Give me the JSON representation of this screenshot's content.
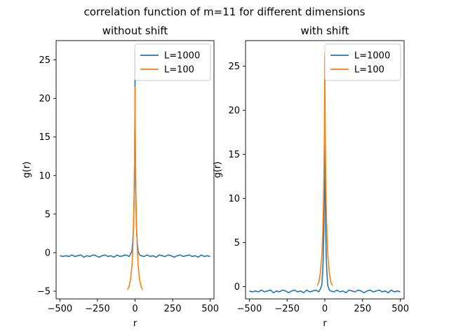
{
  "chart_data": {
    "suptitle": "correlation function of m=11 for different dimensions",
    "subplots": [
      {
        "type": "line",
        "title": "without shift",
        "xlabel": "r",
        "ylabel": "g(r)",
        "xlim": [
          -525,
          525
        ],
        "ylim": [
          -6,
          27.5
        ],
        "xticks": [
          -500,
          -250,
          0,
          250,
          500
        ],
        "yticks": [
          -5,
          0,
          5,
          10,
          15,
          20,
          25
        ],
        "legend": "top-right",
        "series": [
          {
            "name": "L=1000",
            "color": "#1f77b4",
            "x": [
              -500,
              -480,
              -460,
              -440,
              -420,
              -400,
              -380,
              -360,
              -340,
              -320,
              -300,
              -280,
              -260,
              -240,
              -220,
              -200,
              -180,
              -160,
              -140,
              -120,
              -100,
              -80,
              -60,
              -40,
              -30,
              -20,
              -15,
              -10,
              -6,
              -3,
              -1,
              0,
              0,
              1,
              3,
              6,
              10,
              15,
              20,
              30,
              40,
              60,
              80,
              100,
              120,
              140,
              160,
              180,
              200,
              220,
              240,
              260,
              280,
              300,
              320,
              340,
              360,
              380,
              400,
              420,
              440,
              460,
              480,
              500
            ],
            "y": [
              -0.4,
              -0.5,
              -0.4,
              -0.5,
              -0.3,
              -0.5,
              -0.4,
              -0.3,
              -0.6,
              -0.4,
              -0.5,
              -0.3,
              -0.4,
              -0.6,
              -0.4,
              -0.3,
              -0.5,
              -0.4,
              -0.6,
              -0.3,
              -0.5,
              -0.4,
              -0.3,
              -0.5,
              -0.2,
              0.3,
              1.5,
              3.5,
              7.0,
              12.0,
              18.0,
              26.0,
              21.5,
              16.0,
              10.0,
              6.0,
              3.0,
              1.2,
              0.2,
              -0.3,
              -0.4,
              -0.5,
              -0.3,
              -0.5,
              -0.4,
              -0.6,
              -0.3,
              -0.4,
              -0.5,
              -0.3,
              -0.4,
              -0.6,
              -0.4,
              -0.3,
              -0.5,
              -0.4,
              -0.3,
              -0.5,
              -0.4,
              -0.6,
              -0.3,
              -0.5,
              -0.4,
              -0.5
            ]
          },
          {
            "name": "L=100",
            "color": "#ff7f0e",
            "x": [
              -50,
              -40,
              -30,
              -20,
              -15,
              -10,
              -6,
              -3,
              -1,
              0,
              1,
              3,
              6,
              10,
              15,
              20,
              30,
              40,
              50
            ],
            "y": [
              -4.8,
              -4.4,
              -3.5,
              -1.5,
              0.5,
              3.5,
              7.5,
              12.0,
              17.5,
              21.5,
              17.5,
              12.0,
              7.5,
              3.5,
              0.5,
              -1.5,
              -3.5,
              -4.4,
              -4.8
            ]
          }
        ]
      },
      {
        "type": "line",
        "title": "with shift",
        "xlabel": "r",
        "ylabel": "g(r)",
        "xlim": [
          -525,
          525
        ],
        "ylim": [
          -1.4,
          27.9
        ],
        "xticks": [
          -500,
          -250,
          0,
          250,
          500
        ],
        "yticks": [
          0,
          5,
          10,
          15,
          20,
          25
        ],
        "legend": "top-right",
        "series": [
          {
            "name": "L=1000",
            "color": "#1f77b4",
            "x": [
              -500,
              -480,
              -460,
              -440,
              -420,
              -400,
              -380,
              -360,
              -340,
              -320,
              -300,
              -280,
              -260,
              -240,
              -220,
              -200,
              -180,
              -160,
              -140,
              -120,
              -100,
              -80,
              -60,
              -40,
              -30,
              -20,
              -15,
              -10,
              -6,
              -3,
              -1,
              0,
              0,
              1,
              3,
              6,
              10,
              15,
              20,
              30,
              40,
              60,
              80,
              100,
              120,
              140,
              160,
              180,
              200,
              220,
              240,
              260,
              280,
              300,
              320,
              340,
              360,
              380,
              400,
              420,
              440,
              460,
              480,
              500
            ],
            "y": [
              -0.5,
              -0.6,
              -0.5,
              -0.6,
              -0.4,
              -0.6,
              -0.5,
              -0.4,
              -0.7,
              -0.5,
              -0.6,
              -0.4,
              -0.5,
              -0.7,
              -0.5,
              -0.4,
              -0.6,
              -0.5,
              -0.7,
              -0.4,
              -0.6,
              -0.5,
              -0.4,
              -0.6,
              -0.3,
              0.2,
              1.4,
              3.4,
              7.0,
              12.0,
              18.0,
              26.0,
              21.5,
              16.0,
              10.0,
              6.0,
              3.0,
              1.2,
              0.1,
              -0.4,
              -0.5,
              -0.6,
              -0.4,
              -0.6,
              -0.5,
              -0.7,
              -0.4,
              -0.5,
              -0.6,
              -0.4,
              -0.5,
              -0.7,
              -0.5,
              -0.4,
              -0.6,
              -0.5,
              -0.4,
              -0.6,
              -0.5,
              -0.7,
              -0.4,
              -0.6,
              -0.5,
              -0.6
            ]
          },
          {
            "name": "L=100",
            "color": "#ff7f0e",
            "x": [
              -50,
              -40,
              -30,
              -20,
              -15,
              -10,
              -6,
              -3,
              -1,
              0,
              1,
              3,
              6,
              10,
              15,
              20,
              30,
              40,
              50
            ],
            "y": [
              0.1,
              0.5,
              1.5,
              3.5,
              5.5,
              8.5,
              12.5,
              17.0,
              22.5,
              26.5,
              22.5,
              17.0,
              12.5,
              8.5,
              5.5,
              3.5,
              1.5,
              0.5,
              0.1
            ]
          }
        ]
      }
    ]
  }
}
